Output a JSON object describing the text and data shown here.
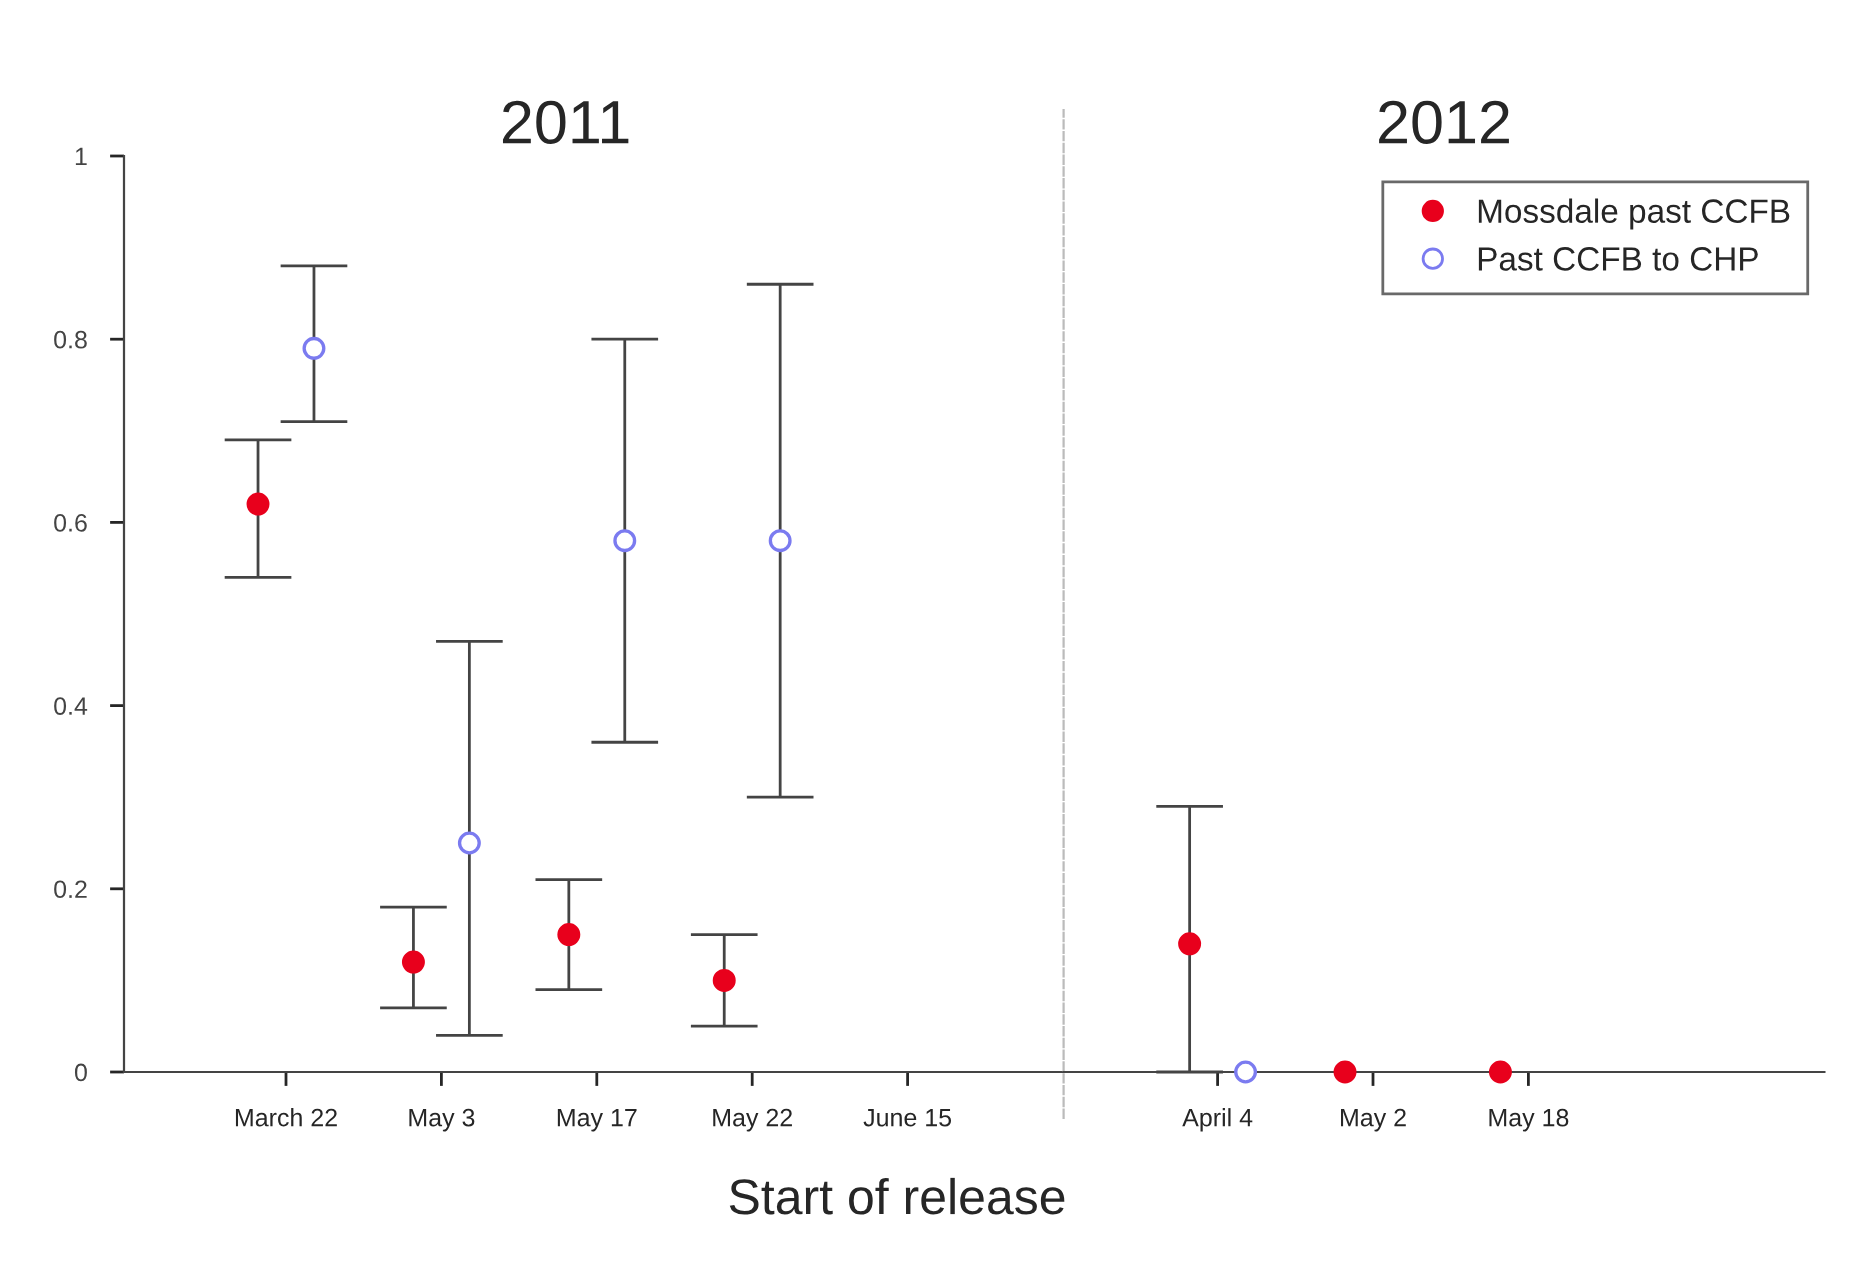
{
  "chart_data": [
    {
      "type": "scatter",
      "title": "2011",
      "categories": [
        "March 22",
        "May 3",
        "May 17",
        "May 22",
        "June 15"
      ],
      "ylim": [
        0,
        1
      ],
      "yticks": [
        0,
        0.2,
        0.4,
        0.6,
        0.8,
        1
      ],
      "grid": false,
      "series": [
        {
          "color": "#e8001c",
          "marker": "circle",
          "values": [
            0.62,
            0.12,
            0.15,
            0.1,
            null
          ],
          "errors": [
            [
              0.54,
              0.69
            ],
            [
              0.07,
              0.18
            ],
            [
              0.09,
              0.21
            ],
            [
              0.05,
              0.15
            ],
            null
          ]
        },
        {
          "color": "#7b7bf0",
          "marker": "circle",
          "values": [
            0.79,
            0.25,
            0.58,
            0.58,
            null
          ],
          "errors": [
            [
              0.71,
              0.88
            ],
            [
              0.04,
              0.47
            ],
            [
              0.36,
              0.8
            ],
            [
              0.3,
              0.86
            ],
            null
          ]
        }
      ]
    },
    {
      "type": "scatter",
      "title": "2012",
      "categories": [
        "April 4",
        "May 2",
        "May 18"
      ],
      "ylim": [
        0,
        1
      ],
      "tick_labels": "x",
      "grid": false,
      "legend": "top right",
      "xlabel": "Start of release",
      "series": [
        {
          "name": "Mossdale past CCFB",
          "color": "#e8001c",
          "marker": "circle",
          "values": [
            0.14,
            0,
            0
          ],
          "errors": [
            [
              0,
              0.29
            ],
            null,
            null
          ]
        },
        {
          "name": "Past CCFB to CHP",
          "color": "#7b7bf0",
          "marker": "circle",
          "values": [
            0,
            null,
            null
          ],
          "errors": [
            null,
            null,
            null
          ]
        }
      ]
    }
  ]
}
